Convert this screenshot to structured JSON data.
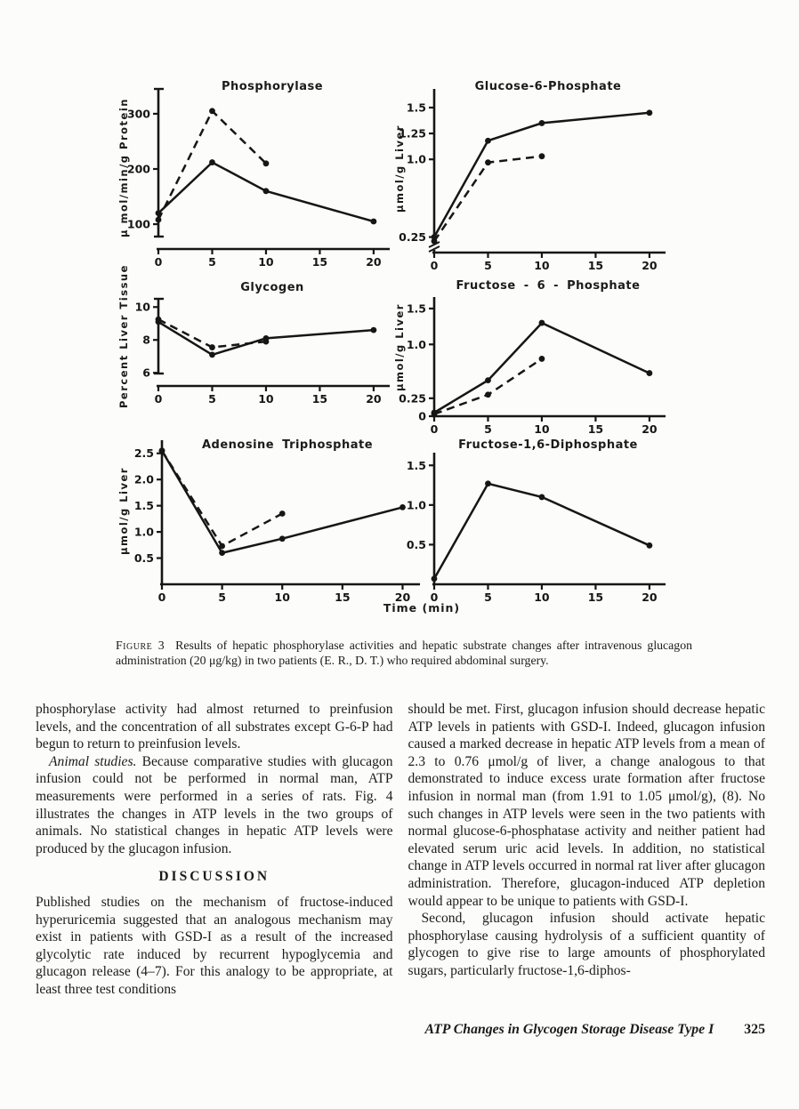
{
  "colors": {
    "ink": "#161616",
    "paper": "#fcfcfa"
  },
  "page": {
    "figure_label": "Figure 3",
    "caption": "Results of hepatic phosphorylase activities and hepatic substrate changes after intravenous glucagon administration (20 μg/kg) in two patients (E. R., D. T.) who required abdominal surgery.",
    "time_axis_label": "Time (min)",
    "discussion_heading": "DISCUSSION",
    "left_col": {
      "p1": "phosphorylase activity had almost returned to preinfusion levels, and the concentration of all substrates except G-6-P had begun to return to preinfusion levels.",
      "p2_lead": "Animal studies.",
      "p2_body": "Because comparative studies with glucagon infusion could not be performed in normal man, ATP measurements were performed in a series of rats. Fig. 4 illustrates the changes in ATP levels in the two groups of animals. No statistical changes in hepatic ATP levels were produced by the glucagon infusion.",
      "p3": "Published studies on the mechanism of fructose-induced hyperuricemia suggested that an analogous mechanism may exist in patients with GSD-I as a result of the increased glycolytic rate induced by recurrent hypoglycemia and glucagon release (4–7). For this analogy to be appropriate, at least three test conditions"
    },
    "right_col": {
      "p1": "should be met. First, glucagon infusion should decrease hepatic ATP levels in patients with GSD-I. Indeed, glucagon infusion caused a marked decrease in hepatic ATP levels from a mean of 2.3 to 0.76 μmol/g of liver, a change analogous to that demonstrated to induce excess urate formation after fructose infusion in normal man (from 1.91 to 1.05 μmol/g), (8). No such changes in ATP levels were seen in the two patients with normal glucose-6-phosphatase activity and neither patient had elevated serum uric acid levels. In addition, no statistical change in ATP levels occurred in normal rat liver after glucagon administration. Therefore, glucagon-induced ATP depletion would appear to be unique to patients with GSD-I.",
      "p2": "Second, glucagon infusion should activate hepatic phosphorylase causing hydrolysis of a sufficient quantity of glycogen to give rise to large amounts of phosphorylated sugars, particularly fructose-1,6-diphos-"
    },
    "running_title": "ATP Changes in Glycogen Storage Disease Type I",
    "page_number": "325"
  },
  "chart_data": [
    {
      "id": "phosphorylase",
      "type": "line",
      "title": "Phosphorylase",
      "ylabel": "μ mol/min/g Protein",
      "xlabel": "Time (min)",
      "xlim": [
        0,
        21
      ],
      "ylim": [
        55,
        345
      ],
      "yaxis_caps": true,
      "ybreak": false,
      "xticks": [
        {
          "v": 0,
          "label": "0"
        },
        {
          "v": 5,
          "label": "5"
        },
        {
          "v": 10,
          "label": "10"
        },
        {
          "v": 15,
          "label": "15"
        },
        {
          "v": 20,
          "label": "20"
        }
      ],
      "yticks": [
        {
          "v": 100,
          "label": "100"
        },
        {
          "v": 200,
          "label": "200"
        },
        {
          "v": 300,
          "label": "300"
        }
      ],
      "series": [
        {
          "name": "patient-solid",
          "style": "solid",
          "points": [
            [
              0,
              120
            ],
            [
              5,
              212
            ],
            [
              10,
              160
            ],
            [
              20,
              105
            ]
          ]
        },
        {
          "name": "patient-dashed",
          "style": "dashed",
          "points": [
            [
              0,
              108
            ],
            [
              5,
              305
            ],
            [
              10,
              210
            ]
          ]
        }
      ]
    },
    {
      "id": "glucose-6-phosphate",
      "type": "line",
      "title": "Glucose-6-Phosphate",
      "ylabel": "μmol/g Liver",
      "xlabel": "Time (min)",
      "xlim": [
        0,
        21
      ],
      "ylim": [
        0.1,
        1.68
      ],
      "yaxis_caps": false,
      "ybreak": true,
      "xticks": [
        {
          "v": 0,
          "label": "0"
        },
        {
          "v": 5,
          "label": "5"
        },
        {
          "v": 10,
          "label": "10"
        },
        {
          "v": 15,
          "label": "15"
        },
        {
          "v": 20,
          "label": "20"
        }
      ],
      "yticks": [
        {
          "v": 0.25,
          "label": "0.25"
        },
        {
          "v": 1.0,
          "label": "1.0"
        },
        {
          "v": 1.25,
          "label": "1.25"
        },
        {
          "v": 1.5,
          "label": "1.5"
        }
      ],
      "series": [
        {
          "name": "patient-solid",
          "style": "solid",
          "points": [
            [
              0,
              0.25
            ],
            [
              5,
              1.18
            ],
            [
              10,
              1.35
            ],
            [
              20,
              1.45
            ]
          ]
        },
        {
          "name": "patient-dashed",
          "style": "dashed",
          "points": [
            [
              0,
              0.21
            ],
            [
              5,
              0.97
            ],
            [
              10,
              1.03
            ]
          ]
        }
      ]
    },
    {
      "id": "glycogen",
      "type": "line",
      "title": "Glycogen",
      "ylabel": "Percent Liver Tissue",
      "xlabel": "Time (min)",
      "xlim": [
        0,
        21
      ],
      "ylim": [
        5.2,
        10.5
      ],
      "yaxis_caps": true,
      "ybreak": false,
      "xticks": [
        {
          "v": 0,
          "label": "0"
        },
        {
          "v": 5,
          "label": "5"
        },
        {
          "v": 10,
          "label": "10"
        },
        {
          "v": 15,
          "label": "15"
        },
        {
          "v": 20,
          "label": "20"
        }
      ],
      "yticks": [
        {
          "v": 6,
          "label": "6"
        },
        {
          "v": 8,
          "label": "8"
        },
        {
          "v": 10,
          "label": "10"
        }
      ],
      "series": [
        {
          "name": "patient-solid",
          "style": "solid",
          "points": [
            [
              0,
              9.1
            ],
            [
              5,
              7.1
            ],
            [
              10,
              8.1
            ],
            [
              20,
              8.6
            ]
          ]
        },
        {
          "name": "patient-dashed",
          "style": "dashed",
          "points": [
            [
              0,
              9.25
            ],
            [
              5,
              7.55
            ],
            [
              10,
              7.9
            ]
          ]
        }
      ]
    },
    {
      "id": "fructose-6-phosphate",
      "type": "line",
      "title": "Fructose - 6 - Phosphate",
      "ylabel": "μmol/g Liver",
      "xlabel": "Time (min)",
      "xlim": [
        0,
        21
      ],
      "ylim": [
        0,
        1.66
      ],
      "yaxis_caps": false,
      "ybreak": false,
      "xticks": [
        {
          "v": 0,
          "label": "0"
        },
        {
          "v": 5,
          "label": "5"
        },
        {
          "v": 10,
          "label": "10"
        },
        {
          "v": 15,
          "label": "15"
        },
        {
          "v": 20,
          "label": "20"
        }
      ],
      "yticks": [
        {
          "v": 0,
          "label": "0"
        },
        {
          "v": 0.25,
          "label": "0.25"
        },
        {
          "v": 1.0,
          "label": "1.0"
        },
        {
          "v": 1.5,
          "label": "1.5"
        }
      ],
      "series": [
        {
          "name": "patient-solid",
          "style": "solid",
          "points": [
            [
              0,
              0.05
            ],
            [
              5,
              0.5
            ],
            [
              10,
              1.3
            ],
            [
              20,
              0.6
            ]
          ]
        },
        {
          "name": "patient-dashed",
          "style": "dashed",
          "points": [
            [
              0,
              0.03
            ],
            [
              5,
              0.3
            ],
            [
              10,
              0.8
            ]
          ]
        }
      ]
    },
    {
      "id": "adenosine-triphosphate",
      "type": "line",
      "title": "Adenosine Triphosphate",
      "ylabel": "μmol/g Liver",
      "xlabel": "Time (min)",
      "xlim": [
        0,
        21
      ],
      "ylim": [
        0,
        2.75
      ],
      "yaxis_caps": false,
      "ybreak": false,
      "xticks": [
        {
          "v": 0,
          "label": "0"
        },
        {
          "v": 5,
          "label": "5"
        },
        {
          "v": 10,
          "label": "10"
        },
        {
          "v": 15,
          "label": "15"
        },
        {
          "v": 20,
          "label": "20"
        }
      ],
      "yticks": [
        {
          "v": 0.5,
          "label": "0.5"
        },
        {
          "v": 1.0,
          "label": "1.0"
        },
        {
          "v": 1.5,
          "label": "1.5"
        },
        {
          "v": 2.0,
          "label": "2.0"
        },
        {
          "v": 2.5,
          "label": "2.5"
        }
      ],
      "series": [
        {
          "name": "patient-solid",
          "style": "solid",
          "points": [
            [
              0,
              2.55
            ],
            [
              5,
              0.6
            ],
            [
              10,
              0.87
            ],
            [
              20,
              1.47
            ]
          ]
        },
        {
          "name": "patient-dashed",
          "style": "dashed",
          "points": [
            [
              0,
              2.55
            ],
            [
              5,
              0.73
            ],
            [
              10,
              1.35
            ]
          ]
        }
      ]
    },
    {
      "id": "fructose-1-6-diphosphate",
      "type": "line",
      "title": "Fructose-1,6-Diphosphate",
      "ylabel": "",
      "xlabel": "Time (min)",
      "xlim": [
        0,
        21
      ],
      "ylim": [
        0,
        1.66
      ],
      "yaxis_caps": false,
      "ybreak": false,
      "xticks": [
        {
          "v": 0,
          "label": "0"
        },
        {
          "v": 5,
          "label": "5"
        },
        {
          "v": 10,
          "label": "10"
        },
        {
          "v": 15,
          "label": "15"
        },
        {
          "v": 20,
          "label": "20"
        }
      ],
      "yticks": [
        {
          "v": 0.5,
          "label": "0.5"
        },
        {
          "v": 1.0,
          "label": "1.0"
        },
        {
          "v": 1.5,
          "label": "1.5"
        }
      ],
      "series": [
        {
          "name": "patient-solid",
          "style": "solid",
          "points": [
            [
              0,
              0.07
            ],
            [
              5,
              1.27
            ],
            [
              10,
              1.1
            ],
            [
              20,
              0.49
            ]
          ]
        }
      ]
    }
  ]
}
